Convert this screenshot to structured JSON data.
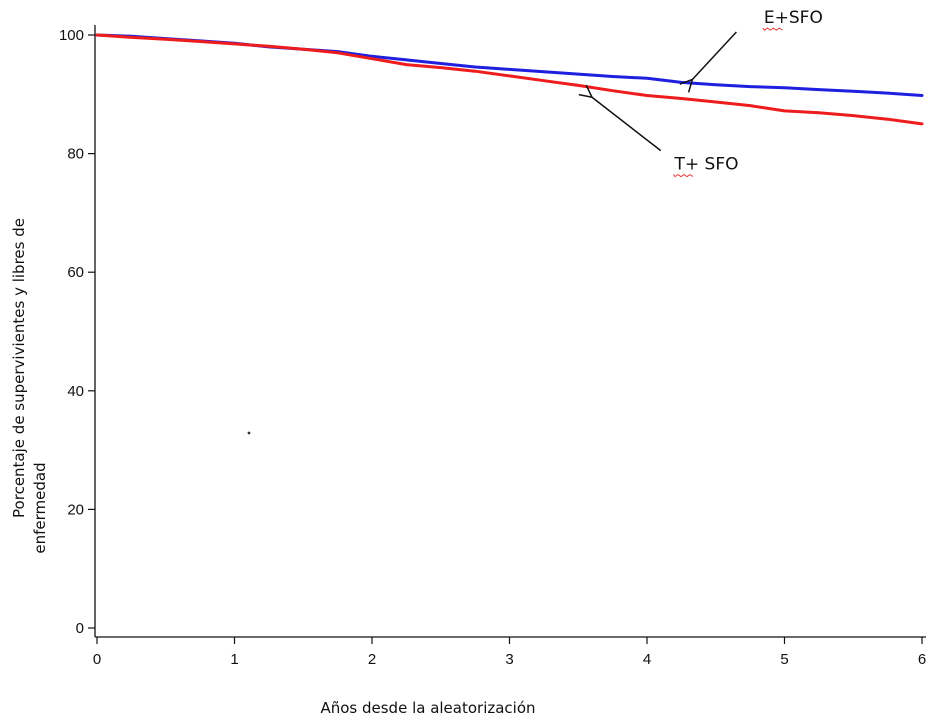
{
  "chart_data": {
    "type": "line",
    "title": "",
    "xlabel": "Años desde la aleatorización",
    "ylabel_lines": [
      "Porcentaje de supervivientes y libres de",
      "enfermedad"
    ],
    "xlim": [
      0,
      6
    ],
    "ylim": [
      0,
      100
    ],
    "x_ticks": [
      0,
      1,
      2,
      3,
      4,
      5,
      6
    ],
    "y_ticks": [
      0,
      20,
      40,
      60,
      80,
      100
    ],
    "grid": false,
    "legend": "none",
    "series": [
      {
        "color": "#1f1fe0",
        "x": [
          0,
          0.25,
          0.5,
          0.75,
          1,
          1.25,
          1.5,
          1.75,
          2,
          2.25,
          2.5,
          2.75,
          3,
          3.25,
          3.5,
          3.75,
          4,
          4.25,
          4.5,
          4.75,
          5,
          5.25,
          5.5,
          5.75,
          6
        ],
        "values": [
          100,
          99.8,
          99.4,
          99,
          98.6,
          98,
          97.6,
          97.2,
          96.4,
          95.8,
          95.2,
          94.6,
          94.2,
          93.8,
          93.4,
          93,
          92.7,
          92,
          91.6,
          91.3,
          91.1,
          90.8,
          90.5,
          90.2,
          89.8
        ]
      },
      {
        "color": "#ee1c1c",
        "x": [
          0,
          0.25,
          0.5,
          0.75,
          1,
          1.25,
          1.5,
          1.75,
          2,
          2.25,
          2.5,
          2.75,
          3,
          3.25,
          3.5,
          3.75,
          4,
          4.25,
          4.5,
          4.75,
          5,
          5.25,
          5.5,
          5.75,
          6
        ],
        "values": [
          100,
          99.6,
          99.3,
          98.9,
          98.5,
          98.1,
          97.6,
          97,
          96,
          95,
          94.5,
          93.9,
          93.1,
          92.3,
          91.5,
          90.6,
          89.8,
          89.3,
          88.7,
          88.1,
          87.2,
          86.9,
          86.4,
          85.8,
          85
        ]
      }
    ],
    "annotations": [
      {
        "text_parts": [
          "E",
          "+SFO"
        ],
        "text_x": 4.85,
        "text_y": 102,
        "arrow_from": [
          4.65,
          100.5
        ],
        "arrow_to": [
          4.33,
          92.5
        ]
      },
      {
        "text_parts": [
          "T",
          "+",
          " SFO"
        ],
        "text_x": 4.2,
        "text_y": 77.3,
        "arrow_from": [
          4.1,
          80.5
        ],
        "arrow_to": [
          3.6,
          89.5
        ]
      }
    ]
  }
}
